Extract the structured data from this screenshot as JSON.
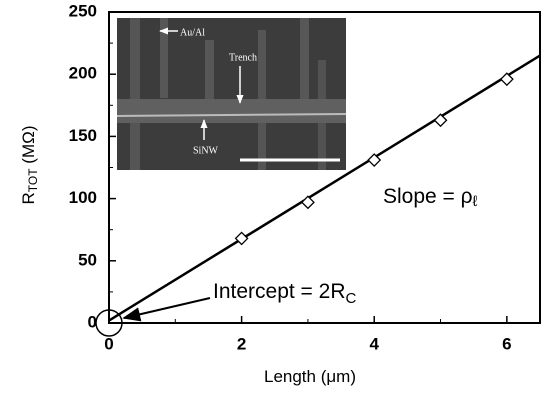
{
  "chart_data": {
    "type": "scatter",
    "x_label": {
      "main": "Length (",
      "symbol": "μm",
      "end": ")"
    },
    "y_label": {
      "main": "R",
      "sub": "TOT",
      "rest": " (MΩ)"
    },
    "x": [
      2,
      3,
      4,
      5,
      6
    ],
    "values": [
      68,
      97,
      131,
      163,
      196
    ],
    "fit_line": {
      "x": [
        0,
        6.5
      ],
      "values": [
        2,
        215
      ]
    },
    "xlim": [
      0,
      6.5
    ],
    "ylim": [
      0,
      250
    ],
    "xticks": [
      0,
      2,
      4,
      6
    ],
    "yticks": [
      0,
      50,
      100,
      150,
      200,
      250
    ],
    "x_minor_ticks": [
      1,
      3,
      5
    ],
    "y_minor_ticks": [
      25,
      75,
      125,
      175,
      225
    ],
    "annotations": {
      "slope": {
        "text": "Slope = ρ",
        "sub": "ℓ"
      },
      "intercept": {
        "text": "Intercept = 2R",
        "sub": "C"
      }
    },
    "inset_labels": {
      "metal": "Au/Al",
      "trench": "Trench",
      "wire": "SiNW"
    }
  }
}
